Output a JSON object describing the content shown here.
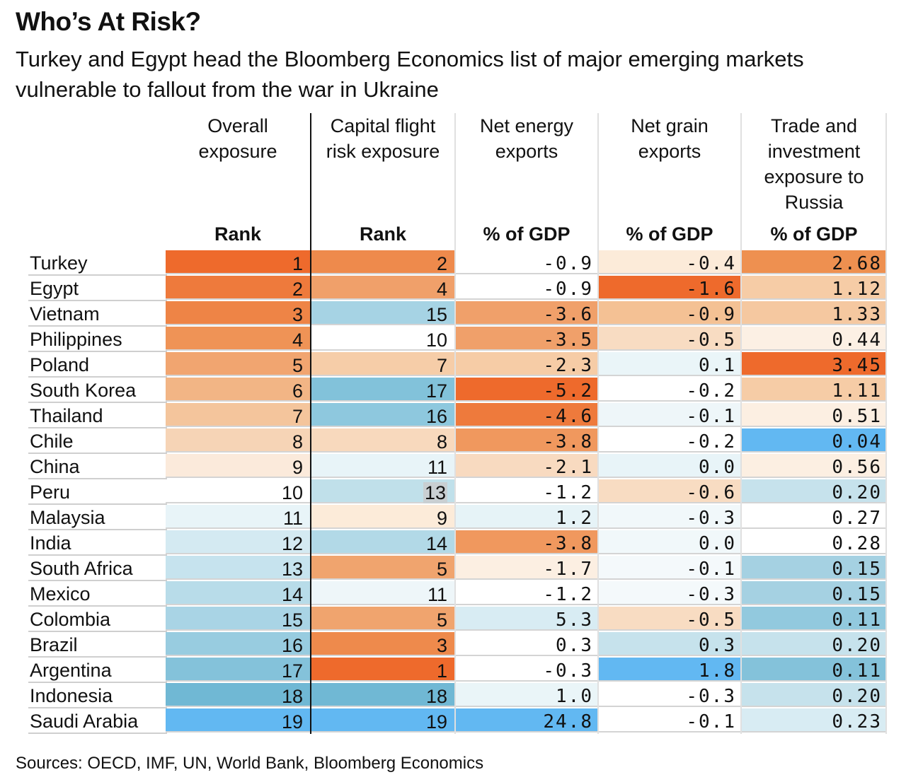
{
  "title": "Who’s At Risk?",
  "subtitle": "Turkey and Egypt head the Bloomberg Economics list of major emerging markets vulnerable to fallout from the war in Ukraine",
  "source": "Sources: OECD, IMF, UN, World Bank, Bloomberg Economics",
  "chart_data": {
    "type": "table",
    "title": "Who’s At Risk?",
    "columns": [
      {
        "name": "Overall exposure",
        "unit": "Rank"
      },
      {
        "name": "Capital flight risk exposure",
        "unit": "Rank"
      },
      {
        "name": "Net energy exports",
        "unit": "% of GDP"
      },
      {
        "name": "Net grain exports",
        "unit": "% of GDP"
      },
      {
        "name": "Trade and investment exposure to Russia",
        "unit": "% of GDP"
      }
    ],
    "rows": [
      {
        "country": "Turkey",
        "values": [
          "1",
          "2",
          "-0.9",
          "-0.4",
          "2.68"
        ],
        "colors": [
          "#ee6a2c",
          "#ee8a4c",
          "#ffffff",
          "#fcebd9",
          "#ee9050"
        ]
      },
      {
        "country": "Egypt",
        "values": [
          "2",
          "4",
          "-0.9",
          "-1.6",
          "1.12"
        ],
        "colors": [
          "#ee7a3c",
          "#f0a06a",
          "#ffffff",
          "#ee6a2c",
          "#f6cca6"
        ]
      },
      {
        "country": "Vietnam",
        "values": [
          "3",
          "15",
          "-3.6",
          "-0.9",
          "1.33"
        ],
        "colors": [
          "#ee8446",
          "#a6d3e4",
          "#f0a06a",
          "#f4c194",
          "#f5c8a0"
        ]
      },
      {
        "country": "Philippines",
        "values": [
          "4",
          "10",
          "-3.5",
          "-0.5",
          "0.44"
        ],
        "colors": [
          "#ef9356",
          "#ffffff",
          "#f0a06a",
          "#f8dcc2",
          "#fcf0e4"
        ]
      },
      {
        "country": "Poland",
        "values": [
          "5",
          "7",
          "-2.3",
          "0.1",
          "3.45"
        ],
        "colors": [
          "#f1a570",
          "#f6cda8",
          "#f6cca6",
          "#eaf5f8",
          "#ee6a2c"
        ]
      },
      {
        "country": "South Korea",
        "values": [
          "6",
          "17",
          "-5.2",
          "-0.2",
          "1.11"
        ],
        "colors": [
          "#f2b585",
          "#82c2da",
          "#ee6a2c",
          "#ffffff",
          "#f6cca6"
        ]
      },
      {
        "country": "Thailand",
        "values": [
          "7",
          "16",
          "-4.6",
          "-0.1",
          "0.51"
        ],
        "colors": [
          "#f4c59c",
          "#8ec8de",
          "#ee7a3c",
          "#eef6f9",
          "#fcefe2"
        ]
      },
      {
        "country": "Chile",
        "values": [
          "8",
          "8",
          "-3.8",
          "-0.2",
          "0.04"
        ],
        "colors": [
          "#f6d4b6",
          "#f8d9bd",
          "#f0985e",
          "#ffffff",
          "#62b8f2"
        ]
      },
      {
        "country": "China",
        "values": [
          "9",
          "11",
          "-2.1",
          "0.0",
          "0.56"
        ],
        "colors": [
          "#fbeadb",
          "#e8f4f8",
          "#f8dac0",
          "#e8f4f8",
          "#fcefe2"
        ]
      },
      {
        "country": "Peru",
        "values": [
          "10",
          "13",
          "-1.2",
          "-0.6",
          "0.20"
        ],
        "colors": [
          "#ffffff",
          "#c0e0ea",
          "#ffffff",
          "#f8dcc2",
          "#c6e2ec"
        ]
      },
      {
        "country": "Malaysia",
        "values": [
          "11",
          "9",
          "1.2",
          "-0.3",
          "0.27"
        ],
        "colors": [
          "#e8f4f8",
          "#fcebd9",
          "#e6f3f7",
          "#f1f8fa",
          "#ffffff"
        ]
      },
      {
        "country": "India",
        "values": [
          "12",
          "14",
          "-3.8",
          "0.0",
          "0.28"
        ],
        "colors": [
          "#d4eaf2",
          "#b2d9e7",
          "#f0985e",
          "#f1f8fa",
          "#ffffff"
        ]
      },
      {
        "country": "South Africa",
        "values": [
          "13",
          "5",
          "-1.7",
          "-0.1",
          "0.15"
        ],
        "colors": [
          "#c6e3ee",
          "#f0a46e",
          "#fcefe2",
          "#f4f9fb",
          "#a5d1e2"
        ]
      },
      {
        "country": "Mexico",
        "values": [
          "14",
          "11",
          "-1.2",
          "-0.3",
          "0.15"
        ],
        "colors": [
          "#b8dce9",
          "#eef6f9",
          "#ffffff",
          "#f4f9fb",
          "#a5d1e2"
        ]
      },
      {
        "country": "Colombia",
        "values": [
          "15",
          "5",
          "5.3",
          "-0.5",
          "0.11"
        ],
        "colors": [
          "#a9d4e5",
          "#f0a46e",
          "#d8ecf3",
          "#f8dcc2",
          "#92c9de"
        ]
      },
      {
        "country": "Brazil",
        "values": [
          "16",
          "3",
          "0.3",
          "0.3",
          "0.20"
        ],
        "colors": [
          "#98cce0",
          "#ee8a4c",
          "#ffffff",
          "#c6e2ec",
          "#c6e2ec"
        ]
      },
      {
        "country": "Argentina",
        "values": [
          "17",
          "1",
          "-0.3",
          "1.8",
          "0.11"
        ],
        "colors": [
          "#84c2da",
          "#ee6a2c",
          "#ffffff",
          "#62b8f2",
          "#84c2da"
        ]
      },
      {
        "country": "Indonesia",
        "values": [
          "18",
          "18",
          "1.0",
          "-0.3",
          "0.20"
        ],
        "colors": [
          "#70b8d4",
          "#70b8d4",
          "#eaf5f8",
          "#ffffff",
          "#c6e2ec"
        ]
      },
      {
        "country": "Saudi Arabia",
        "values": [
          "19",
          "19",
          "24.8",
          "-0.1",
          "0.23"
        ],
        "colors": [
          "#62b8f2",
          "#62b8f2",
          "#62b8f2",
          "#ffffff",
          "#d8ecf3"
        ]
      }
    ],
    "highlighted_cell": {
      "row": "Peru",
      "column": "Capital flight risk exposure"
    },
    "color_scale": {
      "high_risk": "#ee6a2c",
      "neutral": "#ffffff",
      "low_risk": "#62b8f2"
    }
  }
}
